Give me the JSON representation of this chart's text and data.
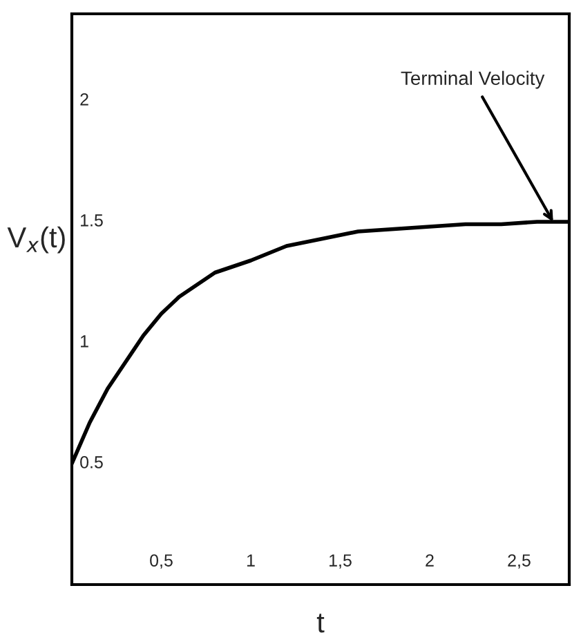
{
  "chart_data": {
    "type": "line",
    "xlabel": "t",
    "ylabel": "V$_{x}$(t)",
    "x": [
      0,
      0.1,
      0.2,
      0.3,
      0.4,
      0.5,
      0.6,
      0.8,
      1.0,
      1.2,
      1.4,
      1.6,
      1.8,
      2.0,
      2.2,
      2.4,
      2.6,
      2.78
    ],
    "series": [
      {
        "color": "#000000",
        "values": [
          0.5,
          0.67,
          0.81,
          0.92,
          1.03,
          1.12,
          1.19,
          1.29,
          1.34,
          1.4,
          1.43,
          1.46,
          1.47,
          1.48,
          1.49,
          1.49,
          1.5,
          1.5
        ]
      }
    ],
    "xlim": [
      0,
      2.78
    ],
    "ylim": [
      0,
      2.36
    ],
    "xticks": [
      {
        "value": 0.5,
        "label": "0,5"
      },
      1,
      {
        "value": 1.5,
        "label": "1,5"
      },
      2,
      {
        "value": 2.5,
        "label": "2,5"
      }
    ],
    "yticks": [
      0.5,
      1,
      1.5,
      2
    ],
    "annotations": [
      {
        "text": "Terminal Velocity",
        "x": 2.69,
        "y": 1.5
      }
    ],
    "grid": false,
    "legend": false,
    "marker": "none",
    "line_style": "solid"
  }
}
